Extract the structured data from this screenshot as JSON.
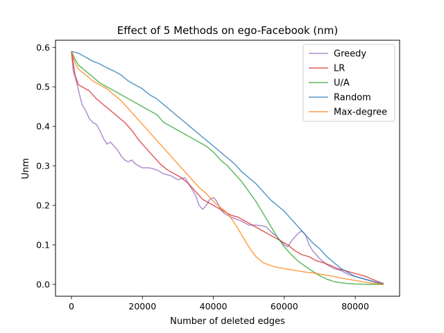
{
  "chart_data": {
    "type": "line",
    "title": "Effect of 5 Methods on ego-Facebook (nm)",
    "xlabel": "Number of deleted edges",
    "ylabel": "Unm",
    "xlim": [
      -4500,
      92500
    ],
    "ylim": [
      -0.03,
      0.618
    ],
    "x_ticks": [
      0,
      20000,
      40000,
      60000,
      80000
    ],
    "x_tick_labels": [
      "0",
      "20000",
      "40000",
      "60000",
      "80000"
    ],
    "y_ticks": [
      0.0,
      0.1,
      0.2,
      0.3,
      0.4,
      0.5,
      0.6
    ],
    "y_tick_labels": [
      "0.0",
      "0.1",
      "0.2",
      "0.3",
      "0.4",
      "0.5",
      "0.6"
    ],
    "grid": false,
    "legend_position": "top-right",
    "series": [
      {
        "name": "Greedy",
        "color": "#9467bd",
        "points": [
          [
            0,
            0.59
          ],
          [
            500,
            0.54
          ],
          [
            1200,
            0.52
          ],
          [
            2000,
            0.49
          ],
          [
            3000,
            0.455
          ],
          [
            4000,
            0.44
          ],
          [
            5000,
            0.42
          ],
          [
            6000,
            0.41
          ],
          [
            7000,
            0.405
          ],
          [
            8000,
            0.39
          ],
          [
            9000,
            0.37
          ],
          [
            10000,
            0.355
          ],
          [
            11000,
            0.36
          ],
          [
            12000,
            0.35
          ],
          [
            13000,
            0.34
          ],
          [
            14000,
            0.325
          ],
          [
            15000,
            0.315
          ],
          [
            16000,
            0.31
          ],
          [
            17000,
            0.315
          ],
          [
            18000,
            0.305
          ],
          [
            19000,
            0.3
          ],
          [
            20000,
            0.295
          ],
          [
            22000,
            0.295
          ],
          [
            24000,
            0.29
          ],
          [
            26000,
            0.28
          ],
          [
            28000,
            0.275
          ],
          [
            30000,
            0.265
          ],
          [
            32000,
            0.27
          ],
          [
            33000,
            0.255
          ],
          [
            34000,
            0.24
          ],
          [
            35000,
            0.225
          ],
          [
            36000,
            0.2
          ],
          [
            37000,
            0.19
          ],
          [
            38000,
            0.2
          ],
          [
            39000,
            0.215
          ],
          [
            40000,
            0.22
          ],
          [
            41000,
            0.21
          ],
          [
            42000,
            0.19
          ],
          [
            43000,
            0.18
          ],
          [
            45000,
            0.17
          ],
          [
            48000,
            0.16
          ],
          [
            50000,
            0.15
          ],
          [
            52000,
            0.15
          ],
          [
            54000,
            0.148
          ],
          [
            55000,
            0.145
          ],
          [
            56000,
            0.135
          ],
          [
            58000,
            0.12
          ],
          [
            59000,
            0.11
          ],
          [
            60000,
            0.1
          ],
          [
            61000,
            0.095
          ],
          [
            62000,
            0.11
          ],
          [
            63000,
            0.12
          ],
          [
            64000,
            0.13
          ],
          [
            65000,
            0.135
          ],
          [
            66000,
            0.125
          ],
          [
            67000,
            0.1
          ],
          [
            68000,
            0.085
          ],
          [
            69000,
            0.075
          ],
          [
            70000,
            0.065
          ],
          [
            72000,
            0.05
          ],
          [
            74000,
            0.04
          ],
          [
            76000,
            0.035
          ],
          [
            78000,
            0.025
          ],
          [
            80000,
            0.02
          ],
          [
            82000,
            0.015
          ],
          [
            84000,
            0.01
          ],
          [
            86000,
            0.005
          ],
          [
            88000,
            0.0
          ]
        ]
      },
      {
        "name": "LR",
        "color": "#d62728",
        "points": [
          [
            0,
            0.59
          ],
          [
            500,
            0.56
          ],
          [
            1000,
            0.53
          ],
          [
            2000,
            0.505
          ],
          [
            3000,
            0.5
          ],
          [
            5000,
            0.49
          ],
          [
            7000,
            0.47
          ],
          [
            9000,
            0.455
          ],
          [
            11000,
            0.44
          ],
          [
            13000,
            0.425
          ],
          [
            15000,
            0.41
          ],
          [
            17000,
            0.39
          ],
          [
            19000,
            0.365
          ],
          [
            21000,
            0.345
          ],
          [
            23000,
            0.325
          ],
          [
            25000,
            0.305
          ],
          [
            27000,
            0.29
          ],
          [
            29000,
            0.28
          ],
          [
            31000,
            0.27
          ],
          [
            33000,
            0.255
          ],
          [
            35000,
            0.235
          ],
          [
            37000,
            0.215
          ],
          [
            39000,
            0.205
          ],
          [
            41000,
            0.195
          ],
          [
            43000,
            0.185
          ],
          [
            45000,
            0.175
          ],
          [
            47000,
            0.17
          ],
          [
            49000,
            0.16
          ],
          [
            51000,
            0.15
          ],
          [
            53000,
            0.14
          ],
          [
            55000,
            0.13
          ],
          [
            57000,
            0.12
          ],
          [
            59000,
            0.11
          ],
          [
            61000,
            0.1
          ],
          [
            63000,
            0.085
          ],
          [
            65000,
            0.075
          ],
          [
            67000,
            0.07
          ],
          [
            69000,
            0.06
          ],
          [
            71000,
            0.055
          ],
          [
            73000,
            0.048
          ],
          [
            75000,
            0.04
          ],
          [
            77000,
            0.035
          ],
          [
            79000,
            0.03
          ],
          [
            81000,
            0.025
          ],
          [
            83000,
            0.02
          ],
          [
            85000,
            0.012
          ],
          [
            87000,
            0.005
          ],
          [
            88000,
            0.002
          ]
        ]
      },
      {
        "name": "U/A",
        "color": "#2ca02c",
        "points": [
          [
            0,
            0.59
          ],
          [
            1000,
            0.57
          ],
          [
            2000,
            0.555
          ],
          [
            4000,
            0.54
          ],
          [
            6000,
            0.525
          ],
          [
            8000,
            0.51
          ],
          [
            10000,
            0.5
          ],
          [
            12000,
            0.49
          ],
          [
            14000,
            0.48
          ],
          [
            16000,
            0.47
          ],
          [
            18000,
            0.46
          ],
          [
            20000,
            0.45
          ],
          [
            22000,
            0.44
          ],
          [
            24000,
            0.43
          ],
          [
            26000,
            0.41
          ],
          [
            28000,
            0.4
          ],
          [
            30000,
            0.39
          ],
          [
            32000,
            0.38
          ],
          [
            34000,
            0.37
          ],
          [
            36000,
            0.36
          ],
          [
            38000,
            0.35
          ],
          [
            40000,
            0.335
          ],
          [
            42000,
            0.315
          ],
          [
            44000,
            0.3
          ],
          [
            46000,
            0.28
          ],
          [
            48000,
            0.26
          ],
          [
            50000,
            0.235
          ],
          [
            52000,
            0.21
          ],
          [
            54000,
            0.18
          ],
          [
            56000,
            0.15
          ],
          [
            58000,
            0.12
          ],
          [
            60000,
            0.095
          ],
          [
            62000,
            0.075
          ],
          [
            64000,
            0.058
          ],
          [
            66000,
            0.045
          ],
          [
            68000,
            0.033
          ],
          [
            70000,
            0.022
          ],
          [
            72000,
            0.013
          ],
          [
            74000,
            0.007
          ],
          [
            76000,
            0.004
          ],
          [
            78000,
            0.002
          ],
          [
            80000,
            0.001
          ],
          [
            84000,
            0.0
          ],
          [
            88000,
            0.0
          ]
        ]
      },
      {
        "name": "Random",
        "color": "#1f77b4",
        "points": [
          [
            0,
            0.59
          ],
          [
            2000,
            0.585
          ],
          [
            4000,
            0.575
          ],
          [
            6000,
            0.565
          ],
          [
            8000,
            0.558
          ],
          [
            10000,
            0.548
          ],
          [
            12000,
            0.54
          ],
          [
            14000,
            0.53
          ],
          [
            16000,
            0.515
          ],
          [
            18000,
            0.505
          ],
          [
            20000,
            0.495
          ],
          [
            22000,
            0.48
          ],
          [
            24000,
            0.47
          ],
          [
            26000,
            0.455
          ],
          [
            28000,
            0.44
          ],
          [
            30000,
            0.425
          ],
          [
            32000,
            0.41
          ],
          [
            34000,
            0.395
          ],
          [
            36000,
            0.38
          ],
          [
            38000,
            0.365
          ],
          [
            40000,
            0.35
          ],
          [
            42000,
            0.335
          ],
          [
            44000,
            0.32
          ],
          [
            46000,
            0.305
          ],
          [
            48000,
            0.285
          ],
          [
            50000,
            0.27
          ],
          [
            52000,
            0.255
          ],
          [
            54000,
            0.235
          ],
          [
            56000,
            0.215
          ],
          [
            58000,
            0.2
          ],
          [
            60000,
            0.185
          ],
          [
            62000,
            0.165
          ],
          [
            64000,
            0.145
          ],
          [
            66000,
            0.125
          ],
          [
            68000,
            0.105
          ],
          [
            70000,
            0.09
          ],
          [
            72000,
            0.07
          ],
          [
            74000,
            0.055
          ],
          [
            76000,
            0.04
          ],
          [
            78000,
            0.03
          ],
          [
            80000,
            0.02
          ],
          [
            82000,
            0.015
          ],
          [
            84000,
            0.01
          ],
          [
            86000,
            0.005
          ],
          [
            88000,
            0.002
          ]
        ]
      },
      {
        "name": "Max-degree",
        "color": "#ff7f0e",
        "points": [
          [
            0,
            0.59
          ],
          [
            1000,
            0.56
          ],
          [
            2000,
            0.545
          ],
          [
            4000,
            0.53
          ],
          [
            6000,
            0.515
          ],
          [
            8000,
            0.505
          ],
          [
            10000,
            0.495
          ],
          [
            12000,
            0.48
          ],
          [
            14000,
            0.465
          ],
          [
            16000,
            0.445
          ],
          [
            18000,
            0.425
          ],
          [
            20000,
            0.405
          ],
          [
            22000,
            0.385
          ],
          [
            24000,
            0.365
          ],
          [
            26000,
            0.345
          ],
          [
            28000,
            0.325
          ],
          [
            30000,
            0.305
          ],
          [
            32000,
            0.285
          ],
          [
            34000,
            0.265
          ],
          [
            36000,
            0.245
          ],
          [
            38000,
            0.23
          ],
          [
            40000,
            0.21
          ],
          [
            42000,
            0.195
          ],
          [
            44000,
            0.18
          ],
          [
            46000,
            0.155
          ],
          [
            48000,
            0.125
          ],
          [
            50000,
            0.095
          ],
          [
            52000,
            0.07
          ],
          [
            54000,
            0.055
          ],
          [
            56000,
            0.048
          ],
          [
            58000,
            0.043
          ],
          [
            60000,
            0.04
          ],
          [
            62000,
            0.037
          ],
          [
            64000,
            0.034
          ],
          [
            66000,
            0.031
          ],
          [
            68000,
            0.029
          ],
          [
            70000,
            0.026
          ],
          [
            72000,
            0.023
          ],
          [
            74000,
            0.02
          ],
          [
            76000,
            0.016
          ],
          [
            78000,
            0.013
          ],
          [
            80000,
            0.01
          ],
          [
            82000,
            0.007
          ],
          [
            84000,
            0.004
          ],
          [
            86000,
            0.002
          ],
          [
            88000,
            0.0
          ]
        ]
      }
    ]
  }
}
